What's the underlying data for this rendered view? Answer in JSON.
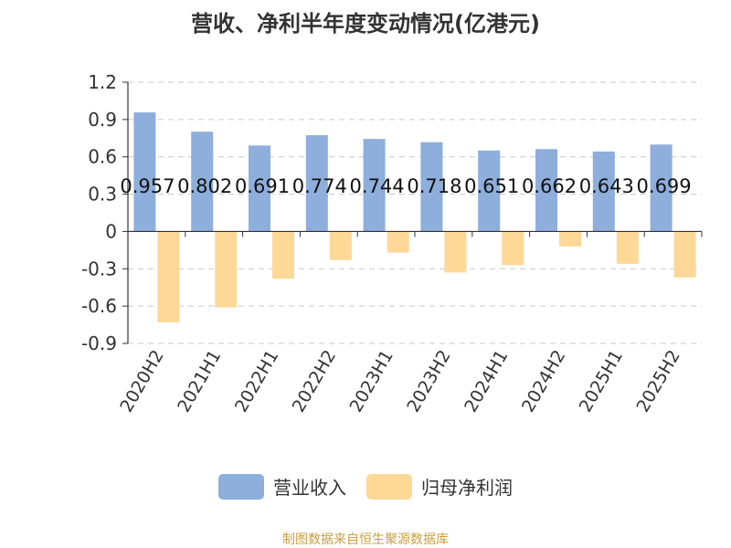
{
  "title": "营收、净利半年度变动情况(亿港元)",
  "source_note": "制图数据来自恒生聚源数据库",
  "colors": {
    "revenue": "#8eaedb",
    "profit": "#fdd897",
    "grid": "#c9c9c9",
    "axis": "#333333"
  },
  "chart_data": {
    "type": "bar",
    "title": "营收、净利半年度变动情况(亿港元)",
    "categories": [
      "2020H2",
      "2021H1",
      "2022H1",
      "2022H2",
      "2023H1",
      "2023H2",
      "2024H1",
      "2024H2",
      "2025H1",
      "2025H2"
    ],
    "series": [
      {
        "name": "营业收入",
        "values": [
          0.957,
          0.802,
          0.691,
          0.774,
          0.744,
          0.718,
          0.651,
          0.662,
          0.643,
          0.699
        ]
      },
      {
        "name": "归母净利润",
        "values": [
          -0.73,
          -0.61,
          -0.38,
          -0.23,
          -0.17,
          -0.33,
          -0.27,
          -0.12,
          -0.26,
          -0.37
        ]
      }
    ],
    "data_labels": [
      "0.957",
      "0.802",
      "0.691",
      "0.774",
      "0.744",
      "0.718",
      "0.651",
      "0.662",
      "0.643",
      "0.699"
    ],
    "yticks": [
      "1.2",
      "0.9",
      "0.6",
      "0.3",
      "0",
      "-0.3",
      "-0.6",
      "-0.9"
    ],
    "ylim": [
      -0.9,
      1.2
    ],
    "grid": true,
    "legend_position": "bottom"
  }
}
